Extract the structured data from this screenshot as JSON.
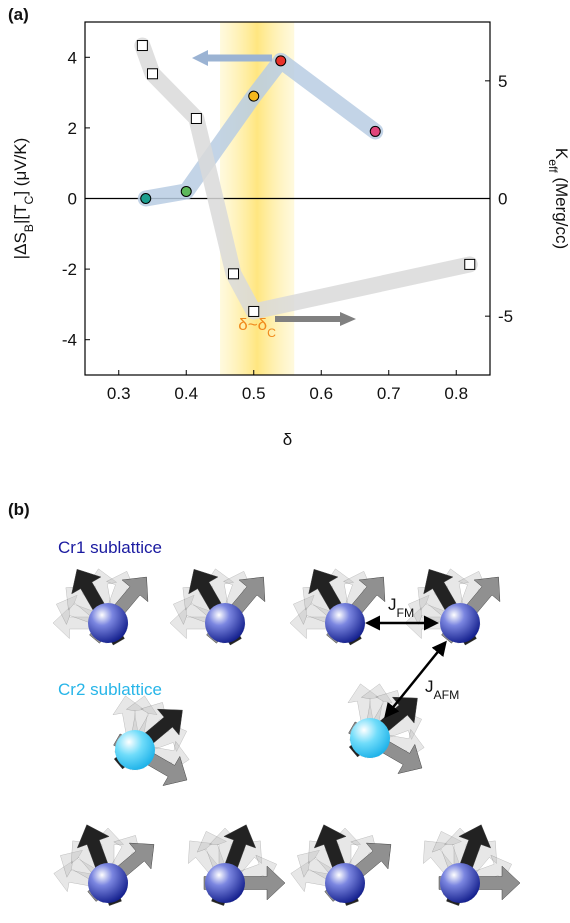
{
  "panel_a": {
    "label": "(a)"
  },
  "chart_data": {
    "type": "scatter",
    "xlabel": "δ",
    "ylabel": [
      "|ΔS",
      "B",
      "|[T",
      "C",
      "] (μV/K)"
    ],
    "y2label": [
      "K",
      "eff",
      " (Merg/cc)"
    ],
    "annotation": [
      "δ~δ",
      "C"
    ],
    "highlight_range": [
      0.45,
      0.56
    ],
    "xlim": [
      0.25,
      0.85
    ],
    "xticks": [
      0.3,
      0.4,
      0.5,
      0.6,
      0.7,
      0.8
    ],
    "ylim": [
      -5,
      5
    ],
    "yticks": [
      -4,
      -2,
      0,
      2,
      4
    ],
    "y2lim": [
      -7.5,
      7.5
    ],
    "y2ticks": [
      -5,
      0,
      5
    ],
    "series": [
      {
        "marker": "circle",
        "band_color": "#b9cde3",
        "x": [
          0.34,
          0.4,
          0.5,
          0.54,
          0.68
        ],
        "values": [
          0,
          0.2,
          2.9,
          3.9,
          1.9
        ],
        "colors": [
          "#1b9e8f",
          "#5db85a",
          "#f4b81c",
          "#e8322a",
          "#e0457b"
        ]
      },
      {
        "marker": "square",
        "axis": "y2",
        "band_color": "#d9d9d9",
        "color": "#ffffff",
        "x": [
          0.335,
          0.35,
          0.415,
          0.47,
          0.5,
          0.82
        ],
        "values": [
          6.5,
          5.3,
          3.4,
          -3.2,
          -4.8,
          -2.8
        ]
      }
    ]
  },
  "panel_b": {
    "label": "(b)",
    "cr1": "Cr1 sublattice",
    "cr2": "Cr2 sublattice",
    "jfm": [
      "J",
      "FM"
    ],
    "jafm": [
      "J",
      "AFM"
    ]
  }
}
